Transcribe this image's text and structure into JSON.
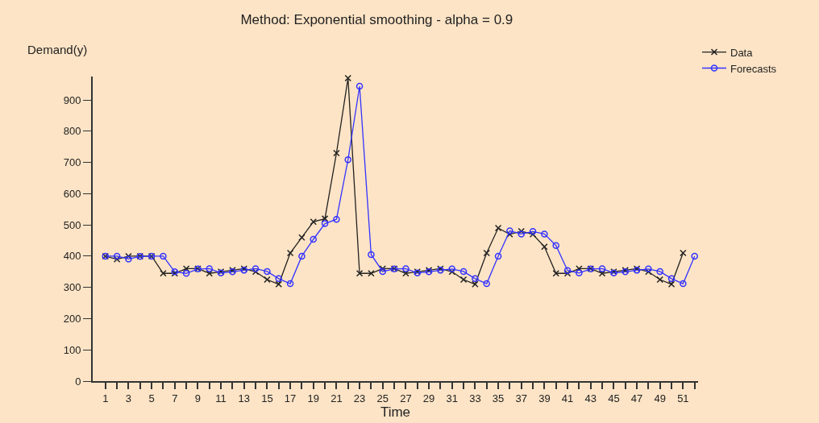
{
  "chart_data": {
    "type": "line",
    "title": "Method: Exponential smoothing - alpha = 0.9",
    "xlabel": "Time",
    "ylabel": "Demand(y)",
    "x": [
      1,
      2,
      3,
      4,
      5,
      6,
      7,
      8,
      9,
      10,
      11,
      12,
      13,
      14,
      15,
      16,
      17,
      18,
      19,
      20,
      21,
      22,
      23,
      24,
      25,
      26,
      27,
      28,
      29,
      30,
      31,
      32,
      33,
      34,
      35,
      36,
      37,
      38,
      39,
      40,
      41,
      42,
      43,
      44,
      45,
      46,
      47,
      48,
      49,
      50,
      51
    ],
    "series": [
      {
        "name": "Data",
        "color": "#222222",
        "marker": "cross",
        "values": [
          400,
          390,
          400,
          400,
          400,
          345,
          345,
          360,
          360,
          345,
          350,
          355,
          360,
          350,
          325,
          310,
          410,
          460,
          510,
          520,
          730,
          970,
          345,
          345,
          360,
          360,
          345,
          350,
          355,
          360,
          350,
          325,
          310,
          410,
          490,
          470,
          480,
          470,
          430,
          345,
          345,
          360,
          360,
          345,
          350,
          355,
          360,
          350,
          325,
          310,
          410
        ]
      },
      {
        "name": "Forecasts",
        "color": "#3333ff",
        "marker": "circle",
        "x": [
          1,
          2,
          3,
          4,
          5,
          6,
          7,
          8,
          9,
          10,
          11,
          12,
          13,
          14,
          15,
          16,
          17,
          18,
          19,
          20,
          21,
          22,
          23,
          24,
          25,
          26,
          27,
          28,
          29,
          30,
          31,
          32,
          33,
          34,
          35,
          36,
          37,
          38,
          39,
          40,
          41,
          42,
          43,
          44,
          45,
          46,
          47,
          48,
          49,
          50,
          51,
          52
        ],
        "values": [
          400,
          400,
          391,
          399,
          400,
          400,
          350,
          345,
          359,
          360,
          346,
          350,
          355,
          360,
          351,
          328,
          312,
          400,
          454,
          504,
          518,
          709,
          944,
          405,
          351,
          359,
          360,
          346,
          350,
          355,
          359,
          351,
          328,
          312,
          400,
          481,
          471,
          479,
          471,
          434,
          354,
          346,
          359,
          360,
          346,
          350,
          355,
          359,
          351,
          328,
          312,
          400
        ]
      }
    ],
    "xlim": [
      -0.1,
      52.3
    ],
    "ylim": [
      0,
      975
    ],
    "xticks": [
      1,
      {
        "value": 2,
        "label": null
      },
      3,
      {
        "value": 4,
        "label": null
      },
      5,
      {
        "value": 6,
        "label": null
      },
      7,
      {
        "value": 8,
        "label": null
      },
      9,
      {
        "value": 10,
        "label": null
      },
      11,
      {
        "value": 12,
        "label": null
      },
      13,
      {
        "value": 14,
        "label": null
      },
      15,
      {
        "value": 16,
        "label": null
      },
      17,
      {
        "value": 18,
        "label": null
      },
      19,
      {
        "value": 20,
        "label": null
      },
      21,
      {
        "value": 22,
        "label": null
      },
      23,
      {
        "value": 24,
        "label": null
      },
      25,
      {
        "value": 26,
        "label": null
      },
      27,
      {
        "value": 28,
        "label": null
      },
      29,
      {
        "value": 30,
        "label": null
      },
      31,
      {
        "value": 32,
        "label": null
      },
      33,
      {
        "value": 34,
        "label": null
      },
      35,
      {
        "value": 36,
        "label": null
      },
      37,
      {
        "value": 38,
        "label": null
      },
      39,
      {
        "value": 40,
        "label": null
      },
      41,
      {
        "value": 42,
        "label": null
      },
      43,
      {
        "value": 44,
        "label": null
      },
      45,
      {
        "value": 46,
        "label": null
      },
      47,
      {
        "value": 48,
        "label": null
      },
      49,
      {
        "value": 50,
        "label": null
      },
      51,
      {
        "value": 52,
        "label": null
      }
    ],
    "yticks": [
      0,
      100,
      200,
      300,
      400,
      500,
      600,
      700,
      800,
      900
    ],
    "grid": false,
    "legend": "top right",
    "line_style": "solid"
  }
}
